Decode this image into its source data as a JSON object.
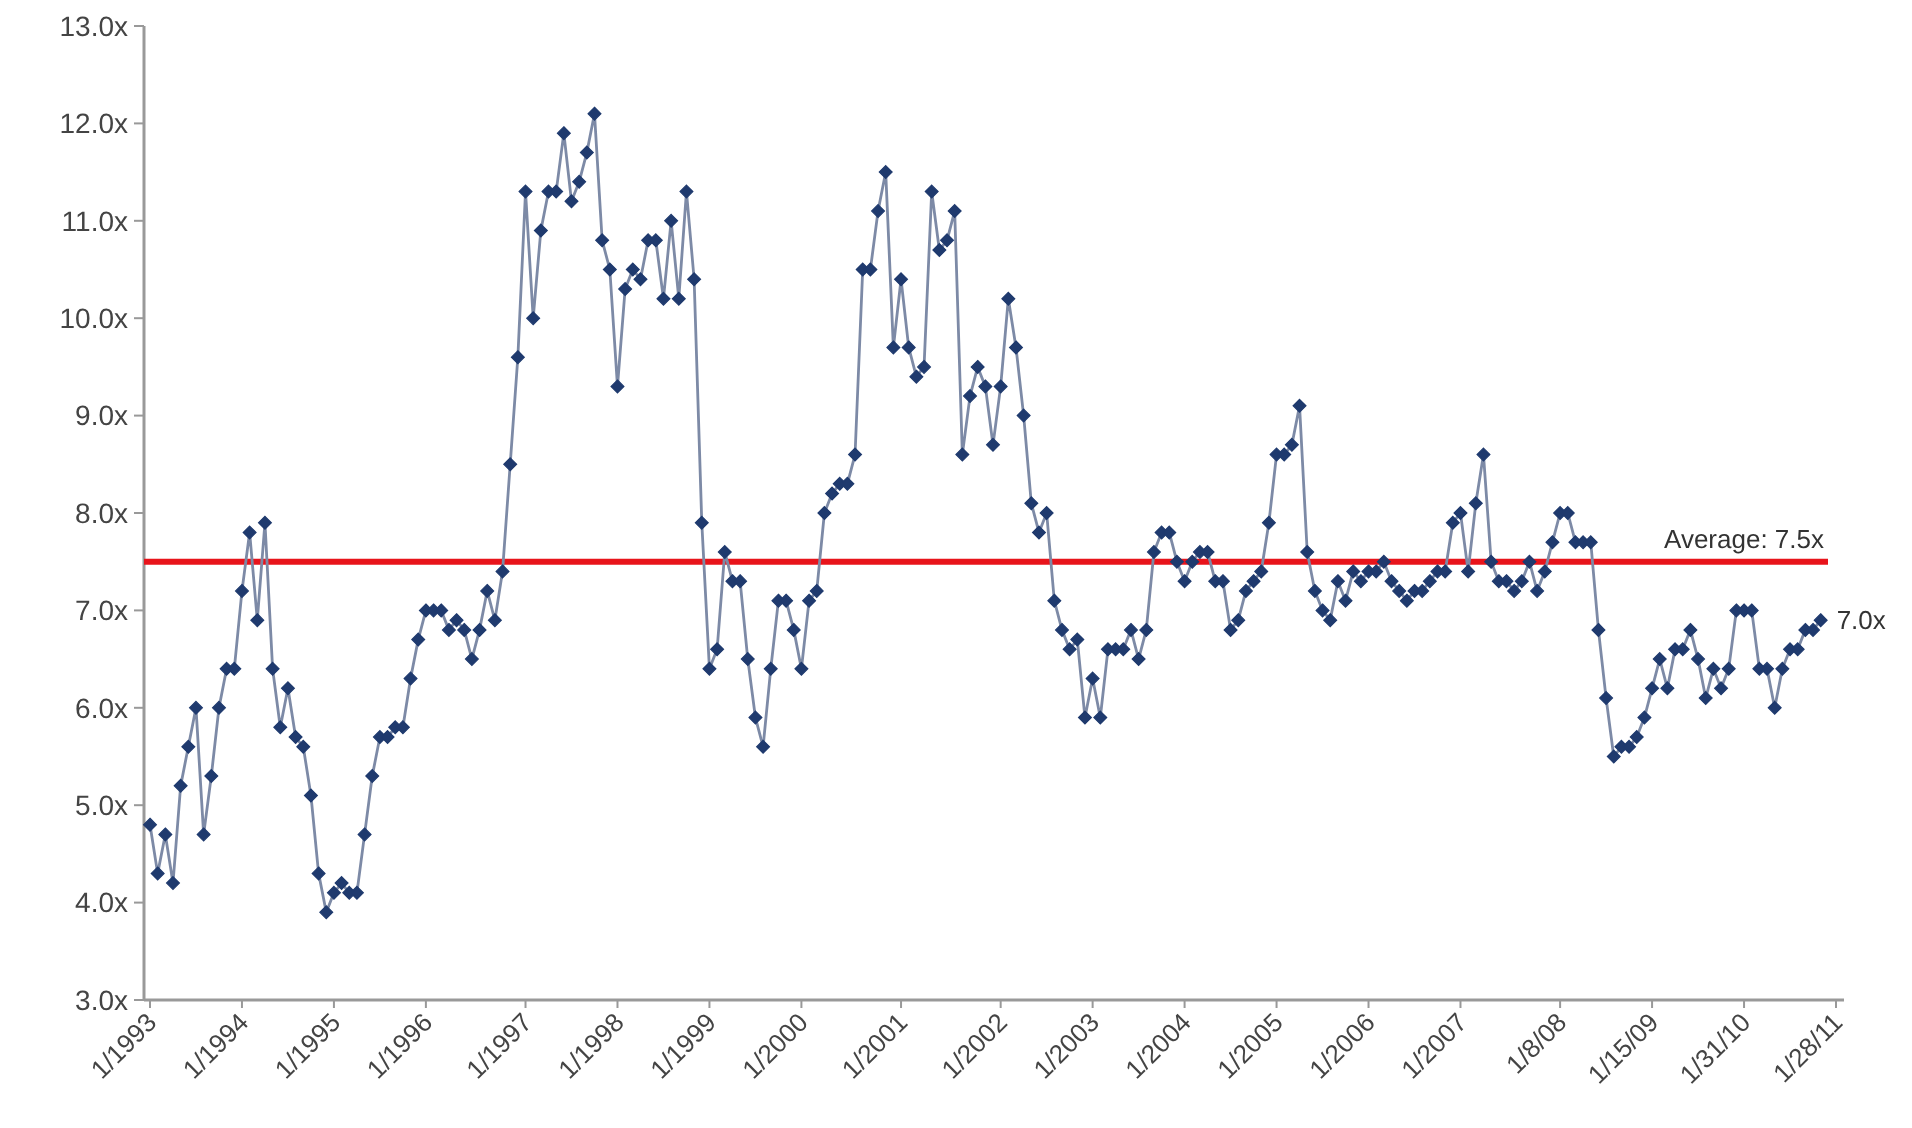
{
  "chart_data": {
    "type": "line",
    "categories": [
      "1/1993",
      null,
      null,
      null,
      null,
      null,
      null,
      null,
      null,
      null,
      null,
      null,
      "1/1994",
      null,
      null,
      null,
      null,
      null,
      null,
      null,
      null,
      null,
      null,
      null,
      "1/1995",
      null,
      null,
      null,
      null,
      null,
      null,
      null,
      null,
      null,
      null,
      null,
      "1/1996",
      null,
      null,
      null,
      null,
      null,
      null,
      null,
      null,
      null,
      null,
      null,
      null,
      "1/1997",
      null,
      null,
      null,
      null,
      null,
      null,
      null,
      null,
      null,
      null,
      null,
      "1/1998",
      null,
      null,
      null,
      null,
      null,
      null,
      null,
      null,
      null,
      null,
      null,
      "1/1999",
      null,
      null,
      null,
      null,
      null,
      null,
      null,
      null,
      null,
      null,
      null,
      "1/2000",
      null,
      null,
      null,
      null,
      null,
      null,
      null,
      null,
      null,
      null,
      null,
      null,
      "1/2001",
      null,
      null,
      null,
      null,
      null,
      null,
      null,
      null,
      null,
      null,
      null,
      null,
      "1/2002",
      null,
      null,
      null,
      null,
      null,
      null,
      null,
      null,
      null,
      null,
      null,
      "1/2003",
      null,
      null,
      null,
      null,
      null,
      null,
      null,
      null,
      null,
      null,
      null,
      "1/2004",
      null,
      null,
      null,
      null,
      null,
      null,
      null,
      null,
      null,
      null,
      null,
      "1/2005",
      null,
      null,
      null,
      null,
      null,
      null,
      null,
      null,
      null,
      null,
      null,
      "1/2006",
      null,
      null,
      null,
      null,
      null,
      null,
      null,
      null,
      null,
      null,
      null,
      "1/2007",
      null,
      null,
      null,
      null,
      null,
      null,
      null,
      null,
      null,
      null,
      null,
      null,
      "1/8/08",
      null,
      null,
      null,
      null,
      null,
      null,
      null,
      null,
      null,
      null,
      null,
      "1/15/09",
      null,
      null,
      null,
      null,
      null,
      null,
      null,
      null,
      null,
      null,
      null,
      "1/31/10",
      null,
      null,
      null,
      null,
      null,
      null,
      null,
      null,
      null,
      null,
      null,
      "1/28/11"
    ],
    "series": [
      {
        "color": "#1f3a6e",
        "values": [
          4.8,
          4.3,
          4.7,
          4.2,
          5.2,
          5.6,
          6.0,
          4.7,
          5.3,
          6.0,
          6.4,
          6.4,
          7.2,
          7.8,
          6.9,
          7.9,
          6.4,
          5.8,
          6.2,
          5.7,
          5.6,
          5.1,
          4.3,
          3.9,
          4.1,
          4.2,
          4.1,
          4.1,
          4.7,
          5.3,
          5.7,
          5.7,
          5.8,
          5.8,
          6.3,
          6.7,
          7.0,
          7.0,
          7.0,
          6.8,
          6.9,
          6.8,
          6.5,
          6.8,
          7.2,
          6.9,
          7.4,
          8.5,
          9.6,
          11.3,
          10.0,
          10.9,
          11.3,
          11.3,
          11.9,
          11.2,
          11.4,
          11.7,
          12.1,
          10.8,
          10.5,
          9.3,
          10.3,
          10.5,
          10.4,
          10.8,
          10.8,
          10.2,
          11.0,
          10.2,
          11.3,
          10.4,
          7.9,
          6.4,
          6.6,
          7.6,
          7.3,
          7.3,
          6.5,
          5.9,
          5.6,
          6.4,
          7.1,
          7.1,
          6.8,
          6.4,
          7.1,
          7.2,
          8.0,
          8.2,
          8.3,
          8.3,
          8.6,
          10.5,
          10.5,
          11.1,
          11.5,
          9.7,
          10.4,
          9.7,
          9.4,
          9.5,
          11.3,
          10.7,
          10.8,
          11.1,
          8.6,
          9.2,
          9.5,
          9.3,
          8.7,
          9.3,
          10.2,
          9.7,
          9.0,
          8.1,
          7.8,
          8.0,
          7.1,
          6.8,
          6.6,
          6.7,
          5.9,
          6.3,
          5.9,
          6.6,
          6.6,
          6.6,
          6.8,
          6.5,
          6.8,
          7.6,
          7.8,
          7.8,
          7.5,
          7.3,
          7.5,
          7.6,
          7.6,
          7.3,
          7.3,
          6.8,
          6.9,
          7.2,
          7.3,
          7.4,
          7.9,
          8.6,
          8.6,
          8.7,
          9.1,
          7.6,
          7.2,
          7.0,
          6.9,
          7.3,
          7.1,
          7.4,
          7.3,
          7.4,
          7.4,
          7.5,
          7.3,
          7.2,
          7.1,
          7.2,
          7.2,
          7.3,
          7.4,
          7.4,
          7.9,
          8.0,
          7.4,
          8.1,
          8.6,
          7.5,
          7.3,
          7.3,
          7.2,
          7.3,
          7.5,
          7.2,
          7.4,
          7.7,
          8.0,
          8.0,
          7.7,
          7.7,
          7.7,
          6.8,
          6.1,
          5.5,
          5.6,
          5.6,
          5.7,
          5.9,
          6.2,
          6.5,
          6.2,
          6.6,
          6.6,
          6.8,
          6.5,
          6.1,
          6.4,
          6.2,
          6.4,
          7.0,
          7.0,
          7.0,
          6.4,
          6.4,
          6.0,
          6.4,
          6.6,
          6.6,
          6.8,
          6.8,
          6.9,
          null,
          null
        ]
      }
    ],
    "ylim": [
      3,
      13
    ],
    "yticks": [
      {
        "value": 3,
        "label": "3.0x"
      },
      {
        "value": 4,
        "label": "4.0x"
      },
      {
        "value": 5,
        "label": "5.0x"
      },
      {
        "value": 6,
        "label": "6.0x"
      },
      {
        "value": 7,
        "label": "7.0x"
      },
      {
        "value": 8,
        "label": "8.0x"
      },
      {
        "value": 9,
        "label": "9.0x"
      },
      {
        "value": 10,
        "label": "10.0x"
      },
      {
        "value": 11,
        "label": "11.0x"
      },
      {
        "value": 12,
        "label": "12.0x"
      },
      {
        "value": 13,
        "label": "13.0x"
      }
    ],
    "ref_lines": [
      {
        "axis": "y",
        "value": 7.5,
        "label": "Average: 7.5x",
        "color": "#e8141b"
      }
    ],
    "annotations": [
      "7.0x"
    ],
    "marker": "diamond",
    "line_style": "solid",
    "grid": false
  }
}
